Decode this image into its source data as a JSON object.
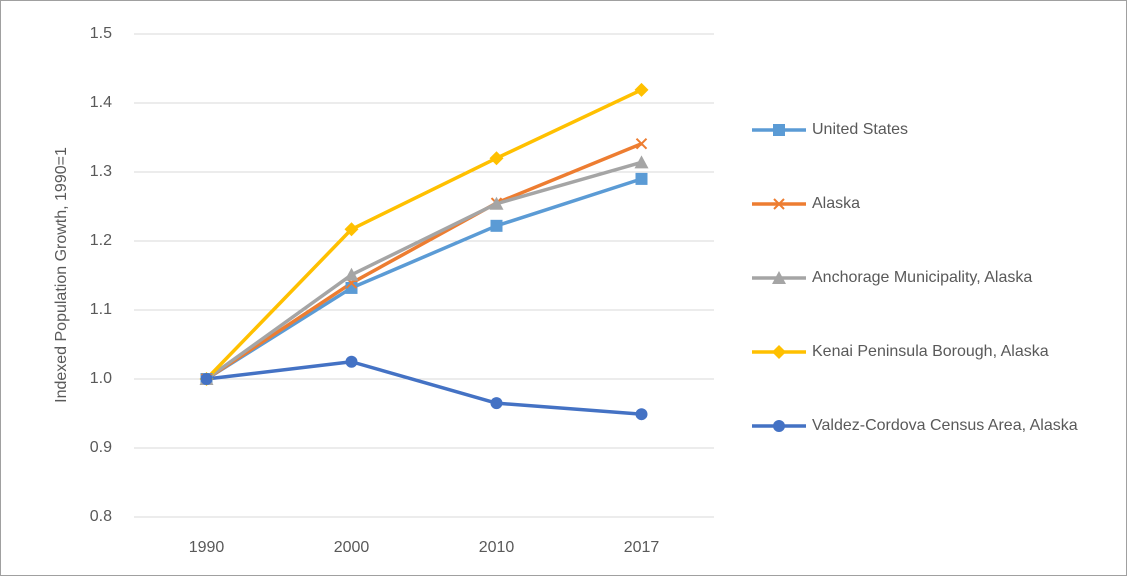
{
  "chart_data": {
    "type": "line",
    "y_axis_label": "Indexed Population Growth, 1990=1",
    "categories": [
      "1990",
      "2000",
      "2010",
      "2017"
    ],
    "series": [
      {
        "name": "United States",
        "color": "#5b9bd5",
        "marker": "square",
        "values": [
          1.0,
          1.132,
          1.222,
          1.29
        ]
      },
      {
        "name": "Alaska",
        "color": "#ed7d31",
        "marker": "x",
        "values": [
          1.0,
          1.139,
          1.255,
          1.341
        ]
      },
      {
        "name": "Anchorage Municipality, Alaska",
        "color": "#a5a5a5",
        "marker": "triangle",
        "values": [
          1.0,
          1.151,
          1.254,
          1.314
        ]
      },
      {
        "name": "Kenai Peninsula Borough, Alaska",
        "color": "#ffc000",
        "marker": "diamond",
        "values": [
          1.0,
          1.217,
          1.32,
          1.419
        ]
      },
      {
        "name": "Valdez-Cordova Census Area, Alaska",
        "color": "#4472c4",
        "marker": "circle",
        "values": [
          1.0,
          1.025,
          0.965,
          0.949
        ]
      }
    ],
    "ylim": [
      0.8,
      1.5
    ],
    "yticks": [
      0.8,
      0.9,
      {
        "value": 1,
        "label": "1.0"
      },
      1.1,
      1.2,
      1.3,
      1.4,
      1.5
    ],
    "grid": true,
    "legend": "right"
  }
}
